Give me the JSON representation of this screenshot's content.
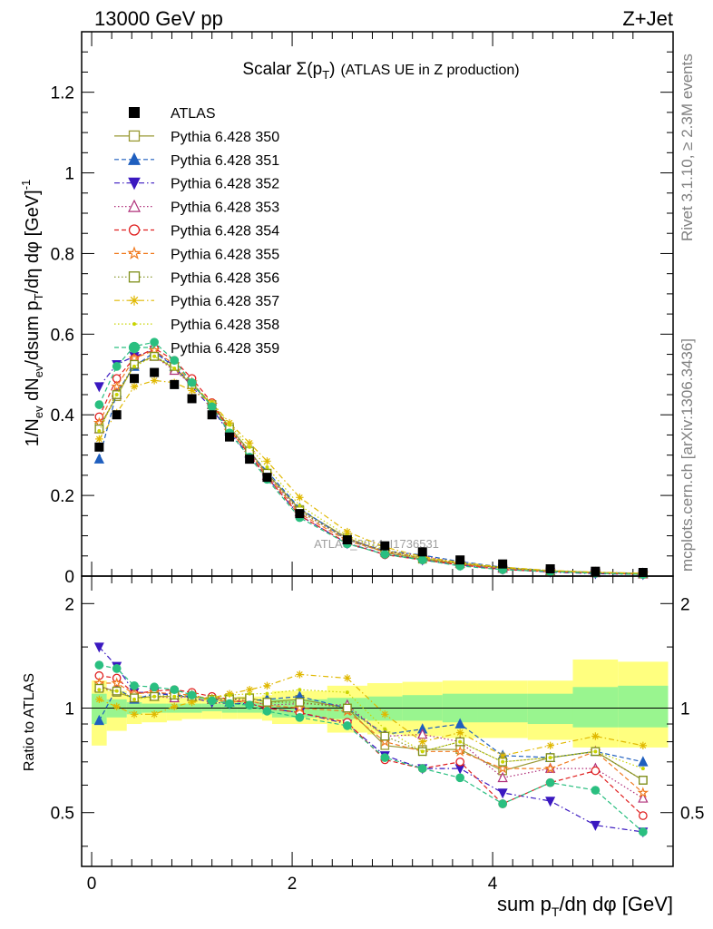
{
  "header": {
    "energy": "13000 GeV pp",
    "process": "Z+Jet"
  },
  "side_labels": {
    "rivet": "Rivet 3.1.10, ≥ 2.3M events",
    "mcplots": "mcplots.cern.ch [arXiv:1306.3436]"
  },
  "chart_data": [
    {
      "type": "line",
      "title_main": "Scalar Σ(p",
      "title_sub": "T",
      "title_close": ")",
      "title_rest": "(ATLAS UE in Z production)",
      "watermark": "ATLAS_2014_I1736531",
      "ylabel": "1/N_ev dN_ev/dsum p_T/dη dφ [GeV]^-1",
      "ylim": [
        0,
        1.35
      ],
      "yticks": [
        "0",
        "0.2",
        "0.4",
        "0.6",
        "0.8",
        "1",
        "1.2"
      ],
      "xlim": [
        -0.1,
        5.8
      ],
      "x": [
        0.075,
        0.25,
        0.425,
        0.625,
        0.825,
        1.0,
        1.2,
        1.375,
        1.575,
        1.75,
        2.075,
        2.55,
        2.925,
        3.3,
        3.675,
        4.1,
        4.575,
        5.025,
        5.5
      ],
      "atlas": [
        0.32,
        0.4,
        0.49,
        0.505,
        0.475,
        0.44,
        0.4,
        0.345,
        0.29,
        0.245,
        0.155,
        0.09,
        0.075,
        0.06,
        0.04,
        0.03,
        0.018,
        0.012,
        0.009
      ],
      "legend": {
        "placement": "top-left",
        "entries": [
          "ATLAS",
          "Pythia 6.428 350",
          "Pythia 6.428 351",
          "Pythia 6.428 352",
          "Pythia 6.428 353",
          "Pythia 6.428 354",
          "Pythia 6.428 355",
          "Pythia 6.428 356",
          "Pythia 6.428 357",
          "Pythia 6.428 358",
          "Pythia 6.428 359"
        ]
      },
      "series": [
        {
          "name": "Pythia 6.428 350",
          "color": "#999933",
          "marker": "open-square",
          "dash": "solid",
          "values": [
            0.37,
            0.445,
            0.525,
            0.545,
            0.515,
            0.475,
            0.425,
            0.37,
            0.31,
            0.255,
            0.165,
            0.095,
            0.058,
            0.042,
            0.03,
            0.02,
            0.013,
            0.009,
            0.006
          ]
        },
        {
          "name": "Pythia 6.428 351",
          "color": "#1f5fbf",
          "marker": "filled-triangle-up",
          "dash": "dashed",
          "values": [
            0.29,
            0.455,
            0.52,
            0.555,
            0.52,
            0.475,
            0.425,
            0.36,
            0.305,
            0.26,
            0.168,
            0.09,
            0.063,
            0.052,
            0.036,
            0.022,
            0.013,
            0.009,
            0.007
          ]
        },
        {
          "name": "Pythia 6.428 352",
          "color": "#3a18c0",
          "marker": "filled-triangle-down",
          "dash": "dashdot",
          "values": [
            0.47,
            0.525,
            0.545,
            0.56,
            0.52,
            0.47,
            0.415,
            0.355,
            0.3,
            0.245,
            0.15,
            0.081,
            0.055,
            0.04,
            0.027,
            0.017,
            0.01,
            0.006,
            0.004
          ]
        },
        {
          "name": "Pythia 6.428 353",
          "color": "#b0307a",
          "marker": "open-triangle-up",
          "dash": "dotted",
          "values": [
            0.365,
            0.45,
            0.525,
            0.545,
            0.51,
            0.475,
            0.425,
            0.365,
            0.305,
            0.25,
            0.16,
            0.092,
            0.062,
            0.05,
            0.032,
            0.019,
            0.012,
            0.008,
            0.005
          ]
        },
        {
          "name": "Pythia 6.428 354",
          "color": "#e02020",
          "marker": "open-circle",
          "dash": "dashed",
          "values": [
            0.395,
            0.49,
            0.54,
            0.565,
            0.535,
            0.49,
            0.43,
            0.365,
            0.3,
            0.245,
            0.15,
            0.082,
            0.053,
            0.04,
            0.028,
            0.016,
            0.011,
            0.008,
            0.004
          ]
        },
        {
          "name": "Pythia 6.428 355",
          "color": "#f07a1f",
          "marker": "open-star",
          "dash": "dashed",
          "values": [
            0.38,
            0.47,
            0.54,
            0.56,
            0.525,
            0.48,
            0.425,
            0.36,
            0.305,
            0.25,
            0.155,
            0.088,
            0.06,
            0.045,
            0.03,
            0.02,
            0.012,
            0.009,
            0.006
          ]
        },
        {
          "name": "Pythia 6.428 356",
          "color": "#7f8f1a",
          "marker": "open-square",
          "dash": "dotted",
          "values": [
            0.365,
            0.45,
            0.525,
            0.545,
            0.52,
            0.475,
            0.425,
            0.365,
            0.31,
            0.255,
            0.162,
            0.09,
            0.062,
            0.045,
            0.032,
            0.021,
            0.013,
            0.009,
            0.006
          ]
        },
        {
          "name": "Pythia 6.428 357",
          "color": "#e0b800",
          "marker": "star",
          "dash": "dashdot",
          "values": [
            0.34,
            0.405,
            0.47,
            0.485,
            0.48,
            0.46,
            0.43,
            0.38,
            0.33,
            0.285,
            0.195,
            0.11,
            0.072,
            0.048,
            0.034,
            0.022,
            0.014,
            0.01,
            0.007
          ]
        },
        {
          "name": "Pythia 6.428 358",
          "color": "#c8d400",
          "marker": "dot",
          "dash": "dotted",
          "values": [
            0.36,
            0.45,
            0.52,
            0.545,
            0.515,
            0.475,
            0.43,
            0.375,
            0.32,
            0.27,
            0.175,
            0.1,
            0.065,
            0.045,
            0.032,
            0.021,
            0.013,
            0.009,
            0.006
          ]
        },
        {
          "name": "Pythia 6.428 359",
          "color": "#2abf80",
          "marker": "filled-circle",
          "dash": "dashed",
          "values": [
            0.425,
            0.52,
            0.57,
            0.58,
            0.535,
            0.48,
            0.42,
            0.355,
            0.295,
            0.24,
            0.145,
            0.08,
            0.054,
            0.04,
            0.025,
            0.016,
            0.011,
            0.007,
            0.004
          ]
        }
      ]
    },
    {
      "type": "line",
      "ylabel": "Ratio to ATLAS",
      "xlabel": "sum p_T/dη dφ [GeV]",
      "log_y": true,
      "ylim": [
        0.35,
        2.4
      ],
      "yticks": [
        "0.5",
        "1",
        "2"
      ],
      "xticks": [
        "0",
        "2",
        "4"
      ],
      "xlim": [
        -0.1,
        5.8
      ],
      "bin_edges": [
        0.0,
        0.15,
        0.35,
        0.5,
        0.75,
        0.9,
        1.1,
        1.3,
        1.45,
        1.7,
        1.8,
        2.35,
        2.75,
        3.1,
        3.5,
        3.85,
        4.35,
        4.8,
        5.25,
        5.75
      ],
      "band_stat_sys": {
        "green_lo": [
          0.9,
          0.94,
          0.96,
          0.97,
          0.97,
          0.97,
          0.98,
          0.97,
          0.97,
          0.96,
          0.94,
          0.93,
          0.92,
          0.92,
          0.91,
          0.91,
          0.9,
          0.88,
          0.88
        ],
        "green_hi": [
          1.1,
          1.06,
          1.04,
          1.03,
          1.03,
          1.03,
          1.03,
          1.03,
          1.04,
          1.05,
          1.06,
          1.07,
          1.08,
          1.09,
          1.1,
          1.1,
          1.1,
          1.15,
          1.16
        ],
        "yellow_lo": [
          0.78,
          0.86,
          0.9,
          0.91,
          0.92,
          0.93,
          0.93,
          0.93,
          0.93,
          0.92,
          0.9,
          0.85,
          0.84,
          0.83,
          0.82,
          0.82,
          0.81,
          0.77,
          0.77
        ],
        "yellow_hi": [
          1.2,
          1.12,
          1.09,
          1.08,
          1.07,
          1.07,
          1.07,
          1.07,
          1.08,
          1.09,
          1.12,
          1.16,
          1.18,
          1.19,
          1.2,
          1.2,
          1.2,
          1.38,
          1.36
        ]
      },
      "series": [
        {
          "name": "Pythia 6.428 350",
          "values": [
            1.16,
            1.11,
            1.07,
            1.08,
            1.08,
            1.08,
            1.06,
            1.07,
            1.07,
            1.04,
            1.06,
            1.0,
            0.78,
            0.76,
            0.76,
            0.66,
            0.72,
            0.75,
            0.62
          ]
        },
        {
          "name": "Pythia 6.428 351",
          "values": [
            0.92,
            1.14,
            1.06,
            1.1,
            1.09,
            1.08,
            1.06,
            1.04,
            1.05,
            1.06,
            1.08,
            1.0,
            0.84,
            0.87,
            0.9,
            0.73,
            0.72,
            0.75,
            0.7
          ]
        },
        {
          "name": "Pythia 6.428 352",
          "values": [
            1.5,
            1.32,
            1.11,
            1.11,
            1.09,
            1.07,
            1.04,
            1.03,
            1.03,
            1.0,
            0.97,
            0.9,
            0.73,
            0.67,
            0.67,
            0.57,
            0.54,
            0.46,
            0.44
          ]
        },
        {
          "name": "Pythia 6.428 353",
          "values": [
            1.15,
            1.12,
            1.07,
            1.08,
            1.07,
            1.08,
            1.06,
            1.06,
            1.05,
            1.02,
            1.03,
            1.02,
            0.83,
            0.84,
            0.8,
            0.63,
            0.67,
            0.67,
            0.55
          ]
        },
        {
          "name": "Pythia 6.428 354",
          "values": [
            1.24,
            1.22,
            1.1,
            1.12,
            1.13,
            1.11,
            1.08,
            1.06,
            1.03,
            1.0,
            0.97,
            0.91,
            0.71,
            0.67,
            0.7,
            0.53,
            0.61,
            0.66,
            0.49
          ]
        },
        {
          "name": "Pythia 6.428 355",
          "values": [
            1.18,
            1.18,
            1.1,
            1.11,
            1.1,
            1.09,
            1.06,
            1.04,
            1.05,
            1.02,
            1.0,
            0.98,
            0.8,
            0.75,
            0.75,
            0.67,
            0.67,
            0.75,
            0.57
          ]
        },
        {
          "name": "Pythia 6.428 356",
          "values": [
            1.14,
            1.12,
            1.07,
            1.08,
            1.09,
            1.08,
            1.06,
            1.06,
            1.07,
            1.04,
            1.04,
            1.0,
            0.83,
            0.75,
            0.8,
            0.7,
            0.72,
            0.75,
            0.62
          ]
        },
        {
          "name": "Pythia 6.428 357",
          "values": [
            1.06,
            1.01,
            0.96,
            0.96,
            1.01,
            1.04,
            1.07,
            1.1,
            1.13,
            1.16,
            1.25,
            1.22,
            0.96,
            0.8,
            0.85,
            0.73,
            0.78,
            0.83,
            0.78
          ]
        },
        {
          "name": "Pythia 6.428 358",
          "values": [
            1.13,
            1.12,
            1.06,
            1.08,
            1.08,
            1.08,
            1.07,
            1.09,
            1.1,
            1.1,
            1.13,
            1.11,
            0.87,
            0.75,
            0.8,
            0.7,
            0.72,
            0.75,
            0.67
          ]
        },
        {
          "name": "Pythia 6.428 359",
          "values": [
            1.33,
            1.3,
            1.16,
            1.15,
            1.13,
            1.09,
            1.05,
            1.03,
            1.02,
            0.98,
            0.94,
            0.89,
            0.72,
            0.67,
            0.63,
            0.53,
            0.61,
            0.58,
            0.44
          ]
        }
      ]
    }
  ]
}
